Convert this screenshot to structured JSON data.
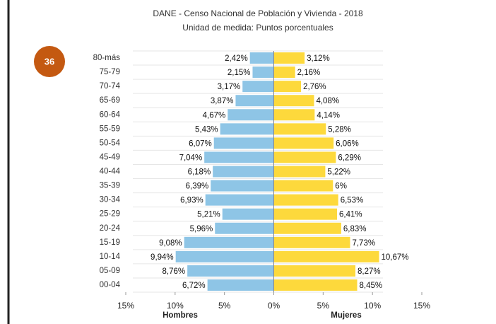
{
  "badge": "36",
  "chart_data": {
    "type": "pyramid",
    "title": "DANE - Censo Nacional de Población y Vivienda - 2018",
    "subtitle": "Unidad de medida: Puntos porcentuales",
    "categories": [
      "80-más",
      "75-79",
      "70-74",
      "65-69",
      "60-64",
      "55-59",
      "50-54",
      "45-49",
      "40-44",
      "35-39",
      "30-34",
      "25-29",
      "20-24",
      "15-19",
      "10-14",
      "05-09",
      "00-04"
    ],
    "series": [
      {
        "name": "Hombres",
        "color": "#8ec5e6",
        "values": [
          2.42,
          2.15,
          3.17,
          3.87,
          4.67,
          5.43,
          6.07,
          7.04,
          6.18,
          6.39,
          6.93,
          5.21,
          5.96,
          9.08,
          9.94,
          8.76,
          6.72
        ],
        "value_labels": [
          "2,42%",
          "2,15%",
          "3,17%",
          "3,87%",
          "4,67%",
          "5,43%",
          "6,07%",
          "7,04%",
          "6,18%",
          "6,39%",
          "6,93%",
          "5,21%",
          "5,96%",
          "9,08%",
          "9,94%",
          "8,76%",
          "6,72%"
        ]
      },
      {
        "name": "Mujeres",
        "color": "#fdd93c",
        "values": [
          3.12,
          2.16,
          2.76,
          4.08,
          4.14,
          5.28,
          6.06,
          6.29,
          5.22,
          6,
          6.53,
          6.41,
          6.83,
          7.73,
          10.67,
          8.27,
          8.45
        ],
        "value_labels": [
          "3,12%",
          "2,16%",
          "2,76%",
          "4,08%",
          "4,14%",
          "5,28%",
          "6,06%",
          "6,29%",
          "5,22%",
          "6%",
          "6,53%",
          "6,41%",
          "6,83%",
          "7,73%",
          "10,67%",
          "8,27%",
          "8,45%"
        ]
      }
    ],
    "xlim": [
      -15,
      15
    ],
    "xticks": [
      {
        "value": -15,
        "label": "15%"
      },
      {
        "value": -10,
        "label": "10%"
      },
      {
        "value": -5,
        "label": "5%"
      },
      {
        "value": 0,
        "label": "0%"
      },
      {
        "value": 5,
        "label": "5%"
      },
      {
        "value": 10,
        "label": "10%"
      },
      {
        "value": 15,
        "label": "15%"
      }
    ]
  }
}
